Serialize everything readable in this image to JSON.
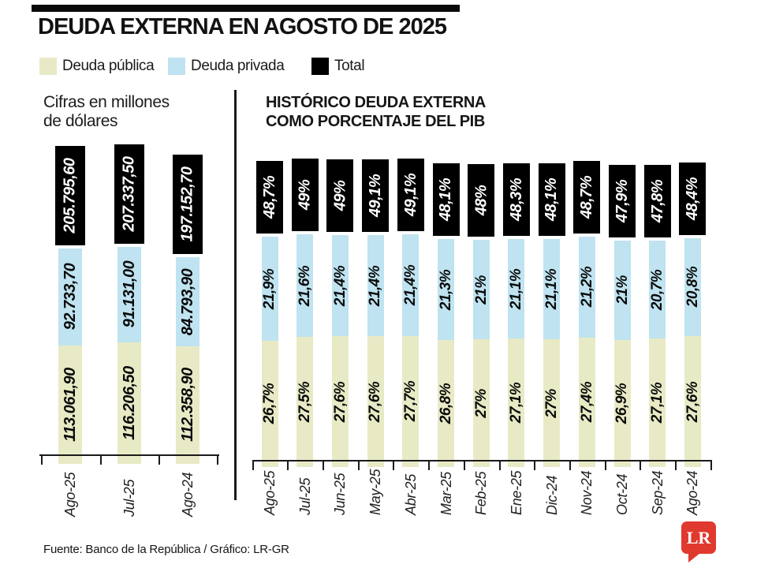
{
  "title": "DEUDA EXTERNA EN AGOSTO DE 2025",
  "legend": [
    {
      "label": "Deuda pública",
      "color": "#e8eac5"
    },
    {
      "label": "Deuda privada",
      "color": "#bfe3f0"
    },
    {
      "label": "Total",
      "color": "#000000"
    }
  ],
  "footer": {
    "source": "Fuente: Banco de la República / Gráfico: LR-GR",
    "logo": "LR",
    "logo_color": "#e0392e"
  },
  "chart_data": [
    {
      "type": "bar",
      "stacked": true,
      "title": "Cifras en millones\nde dólares",
      "categories": [
        "Ago-25",
        "Jul-25",
        "Ago-24"
      ],
      "series": [
        {
          "name": "Deuda pública",
          "color": "#e8eac5",
          "values": [
            113061.9,
            116206.5,
            112358.9
          ],
          "labels": [
            "113.061,90",
            "116.206,50",
            "112.358,90"
          ]
        },
        {
          "name": "Deuda privada",
          "color": "#bfe3f0",
          "values": [
            92733.7,
            91131.0,
            84793.9
          ],
          "labels": [
            "92.733,70",
            "91.131,00",
            "84.793,90"
          ]
        }
      ],
      "totals": {
        "color": "#000000",
        "values": [
          205795.6,
          207337.5,
          197152.7
        ],
        "labels": [
          "205.795,60",
          "207.337,50",
          "197.152,70"
        ]
      }
    },
    {
      "type": "bar",
      "stacked": true,
      "title": "HISTÓRICO DEUDA EXTERNA\nCOMO PORCENTAJE DEL PIB",
      "categories": [
        "Ago-25",
        "Jul-25",
        "Jun-25",
        "May-25",
        "Abr-25",
        "Mar-25",
        "Feb-25",
        "Ene-25",
        "Dic-24",
        "Nov-24",
        "Oct-24",
        "Sep-24",
        "Ago-24"
      ],
      "series": [
        {
          "name": "Deuda pública",
          "color": "#e8eac5",
          "values": [
            26.7,
            27.5,
            27.6,
            27.6,
            27.7,
            26.8,
            27,
            27.1,
            27,
            27.4,
            26.9,
            27.1,
            27.6
          ],
          "labels": [
            "26,7%",
            "27,5%",
            "27,6%",
            "27,6%",
            "27,7%",
            "26,8%",
            "27%",
            "27,1%",
            "27%",
            "27,4%",
            "26,9%",
            "27,1%",
            "27,6%"
          ]
        },
        {
          "name": "Deuda privada",
          "color": "#bfe3f0",
          "values": [
            21.9,
            21.6,
            21.4,
            21.4,
            21.4,
            21.3,
            21,
            21.1,
            21.1,
            21.2,
            21,
            20.7,
            20.8
          ],
          "labels": [
            "21,9%",
            "21,6%",
            "21,4%",
            "21,4%",
            "21,4%",
            "21,3%",
            "21%",
            "21,1%",
            "21,1%",
            "21,2%",
            "21%",
            "20,7%",
            "20,8%"
          ]
        }
      ],
      "totals": {
        "color": "#000000",
        "values": [
          48.7,
          49,
          49,
          49.1,
          49.1,
          48.1,
          48,
          48.3,
          48.1,
          48.7,
          47.9,
          47.8,
          48.4
        ],
        "labels": [
          "48,7%",
          "49%",
          "49%",
          "49,1%",
          "49,1%",
          "48,1%",
          "48%",
          "48,3%",
          "48,1%",
          "48,7%",
          "47,9%",
          "47,8%",
          "48,4%"
        ]
      }
    }
  ]
}
